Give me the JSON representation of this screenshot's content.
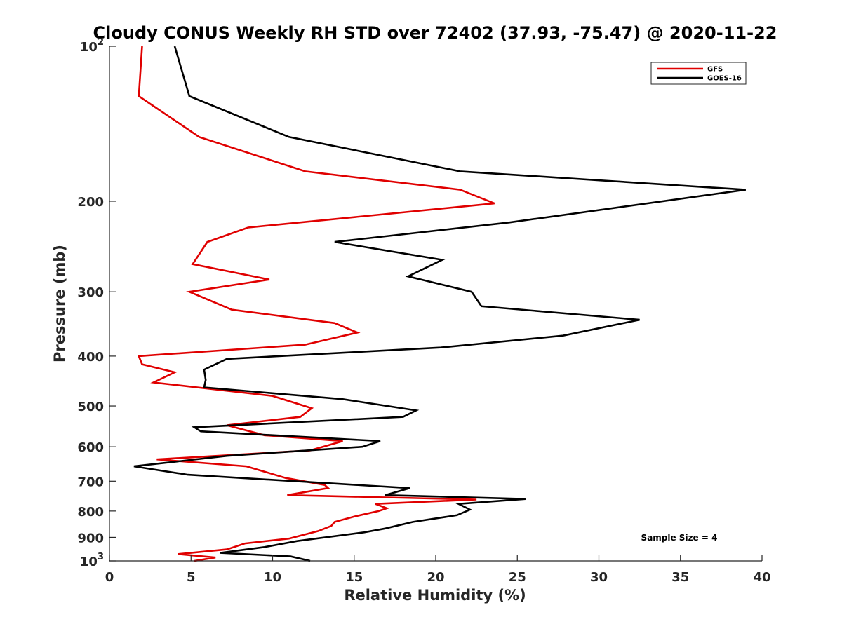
{
  "chart_data": {
    "type": "line",
    "title": "Cloudy CONUS Weekly RH STD over 72402 (37.93, -75.47) @ 2020-11-22",
    "xlabel": "Relative Humidity (%)",
    "ylabel": "Pressure (mb)",
    "xlim": [
      0,
      40
    ],
    "ylim": [
      100,
      1000
    ],
    "y_scale": "log",
    "y_reversed": true,
    "grid": false,
    "legend_position": "top-right",
    "x_ticks": [
      0,
      5,
      10,
      15,
      20,
      25,
      30,
      35,
      40
    ],
    "x_tick_labels": [
      "0",
      "5",
      "10",
      "15",
      "20",
      "25",
      "30",
      "35",
      "40"
    ],
    "y_ticks": [
      100,
      200,
      300,
      400,
      500,
      600,
      700,
      800,
      900,
      1000
    ],
    "y_tick_labels": [
      {
        "base": "10",
        "exp": "2"
      },
      {
        "base": "200",
        "exp": ""
      },
      {
        "base": "300",
        "exp": ""
      },
      {
        "base": "400",
        "exp": ""
      },
      {
        "base": "500",
        "exp": ""
      },
      {
        "base": "600",
        "exp": ""
      },
      {
        "base": "700",
        "exp": ""
      },
      {
        "base": "800",
        "exp": ""
      },
      {
        "base": "900",
        "exp": ""
      },
      {
        "base": "10",
        "exp": "3"
      }
    ],
    "annotation": "Sample Size = 4",
    "series": [
      {
        "name": "GFS",
        "color": "#e00000",
        "points": [
          [
            2.0,
            100
          ],
          [
            1.8,
            125
          ],
          [
            5.5,
            150
          ],
          [
            12.0,
            175
          ],
          [
            21.5,
            190
          ],
          [
            23.6,
            202
          ],
          [
            8.5,
            225
          ],
          [
            6.0,
            240
          ],
          [
            5.1,
            265
          ],
          [
            9.8,
            284
          ],
          [
            4.9,
            300
          ],
          [
            7.5,
            325
          ],
          [
            13.8,
            345
          ],
          [
            15.2,
            360
          ],
          [
            12.0,
            380
          ],
          [
            1.8,
            400
          ],
          [
            2.0,
            415
          ],
          [
            4.0,
            430
          ],
          [
            2.7,
            450
          ],
          [
            10.0,
            478
          ],
          [
            12.4,
            505
          ],
          [
            11.7,
            525
          ],
          [
            7.2,
            545
          ],
          [
            9.5,
            570
          ],
          [
            14.3,
            585
          ],
          [
            12.3,
            610
          ],
          [
            2.9,
            635
          ],
          [
            8.4,
            655
          ],
          [
            10.8,
            690
          ],
          [
            13.2,
            712
          ],
          [
            13.4,
            722
          ],
          [
            10.9,
            745
          ],
          [
            22.5,
            760
          ],
          [
            16.3,
            775
          ],
          [
            17.0,
            790
          ],
          [
            16.5,
            800
          ],
          [
            15.0,
            820
          ],
          [
            13.8,
            840
          ],
          [
            13.6,
            855
          ],
          [
            12.8,
            875
          ],
          [
            11.0,
            905
          ],
          [
            8.3,
            925
          ],
          [
            7.2,
            950
          ],
          [
            4.2,
            970
          ],
          [
            6.5,
            985
          ],
          [
            5.2,
            1000
          ]
        ]
      },
      {
        "name": "GOES-16",
        "color": "#000000",
        "points": [
          [
            4.0,
            100
          ],
          [
            4.9,
            125
          ],
          [
            11.0,
            150
          ],
          [
            21.5,
            175
          ],
          [
            39.0,
            190
          ],
          [
            24.5,
            220
          ],
          [
            13.8,
            240
          ],
          [
            20.4,
            260
          ],
          [
            18.3,
            280
          ],
          [
            22.2,
            300
          ],
          [
            22.8,
            320
          ],
          [
            32.5,
            340
          ],
          [
            27.8,
            365
          ],
          [
            20.3,
            385
          ],
          [
            7.2,
            405
          ],
          [
            5.8,
            425
          ],
          [
            5.9,
            445
          ],
          [
            5.8,
            460
          ],
          [
            14.3,
            485
          ],
          [
            18.8,
            510
          ],
          [
            18.0,
            525
          ],
          [
            5.2,
            550
          ],
          [
            5.6,
            560
          ],
          [
            16.6,
            585
          ],
          [
            15.5,
            600
          ],
          [
            7.2,
            625
          ],
          [
            1.5,
            655
          ],
          [
            4.8,
            680
          ],
          [
            18.4,
            722
          ],
          [
            16.9,
            745
          ],
          [
            25.5,
            758
          ],
          [
            21.4,
            775
          ],
          [
            22.1,
            795
          ],
          [
            21.3,
            815
          ],
          [
            18.6,
            840
          ],
          [
            16.9,
            865
          ],
          [
            15.6,
            880
          ],
          [
            11.5,
            915
          ],
          [
            9.5,
            940
          ],
          [
            6.8,
            965
          ],
          [
            11.1,
            980
          ],
          [
            12.3,
            1000
          ]
        ]
      }
    ]
  }
}
